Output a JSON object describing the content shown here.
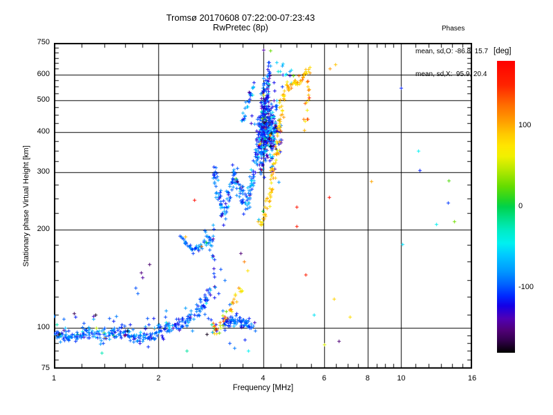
{
  "title": {
    "line1": "Tromsø 20170608 07:22:00-07:23:43",
    "line2": "RwPretec (8p)"
  },
  "stats": {
    "header": "Phases",
    "line_o": "mean, sd,O: -86.8, 15.7",
    "line_x": "mean, sd,X:  95.9, 20.4"
  },
  "axes": {
    "x": {
      "label": "Frequency [MHz]",
      "scale": "log",
      "min": 1,
      "max": 16,
      "major": [
        1,
        2,
        4,
        6,
        8,
        10,
        16
      ],
      "minor": [
        1.2,
        1.4,
        1.6,
        1.8,
        2.5,
        3,
        3.5,
        4.5,
        5,
        5.5,
        6.5,
        7,
        7.5,
        8.5,
        9,
        9.5,
        11,
        12,
        13,
        14,
        15
      ],
      "grid": [
        2,
        4,
        6,
        8,
        10
      ]
    },
    "y": {
      "label": "Stationary phase Virtual Height [km]",
      "scale": "log",
      "min": 75,
      "max": 750,
      "major": [
        75,
        100,
        200,
        300,
        400,
        500,
        600,
        750
      ],
      "minor": [
        80,
        85,
        90,
        95,
        110,
        125,
        140,
        160,
        180,
        225,
        250,
        275,
        325,
        350,
        375,
        425,
        450,
        475,
        525,
        550,
        575,
        625,
        650,
        675,
        700,
        725
      ],
      "grid": [
        100,
        200,
        300,
        400,
        500,
        600
      ]
    }
  },
  "colorbar": {
    "label": "[deg]",
    "min": -180,
    "max": 180,
    "ticks": [
      100,
      0,
      -100
    ],
    "stops": [
      [
        180,
        "#ff0000"
      ],
      [
        150,
        "#ff2400"
      ],
      [
        125,
        "#ff6e00"
      ],
      [
        105,
        "#ff9f00"
      ],
      [
        90,
        "#ffc800"
      ],
      [
        75,
        "#ffe600"
      ],
      [
        62,
        "#f0f000"
      ],
      [
        45,
        "#b4e800"
      ],
      [
        25,
        "#64dc00"
      ],
      [
        8,
        "#1ed428"
      ],
      [
        0,
        "#00d24b"
      ],
      [
        -15,
        "#00e08c"
      ],
      [
        -30,
        "#00ecc8"
      ],
      [
        -45,
        "#00f0f0"
      ],
      [
        -60,
        "#00c8ff"
      ],
      [
        -80,
        "#0096ff"
      ],
      [
        -95,
        "#0064ff"
      ],
      [
        -110,
        "#0028ff"
      ],
      [
        -122,
        "#1400e6"
      ],
      [
        -138,
        "#5000b4"
      ],
      [
        -152,
        "#500078"
      ],
      [
        -165,
        "#32004b"
      ],
      [
        -180,
        "#000000"
      ]
    ]
  },
  "chart_data": {
    "type": "scatter",
    "title": "Tromsø 20170608 07:22:00-07:23:43 RwPretec (8p)",
    "xlabel": "Frequency [MHz]",
    "ylabel": "Stationary phase Virtual Height [km]",
    "xlim": [
      1,
      16
    ],
    "ylim": [
      75,
      750
    ],
    "xscale": "log",
    "yscale": "log",
    "color_variable": "phase [deg]",
    "legend": "colorbar right, phase -180..180 deg",
    "marker": "plus",
    "seed": 7,
    "traces": [
      {
        "name": "e-region-trace",
        "anchors": [
          [
            1.0,
            96
          ],
          [
            1.12,
            94
          ],
          [
            1.25,
            97
          ],
          [
            1.4,
            95
          ],
          [
            1.55,
            98
          ],
          [
            1.7,
            95
          ],
          [
            1.85,
            93
          ],
          [
            2.0,
            97
          ],
          [
            2.12,
            100
          ],
          [
            2.25,
            103
          ],
          [
            2.4,
            106
          ],
          [
            2.55,
            112
          ],
          [
            2.7,
            120
          ],
          [
            2.82,
            130
          ]
        ],
        "n": 300,
        "phase": -95,
        "phase_sd": 16,
        "jf": 0.004,
        "jv": 0.01,
        "rand": 0.03
      },
      {
        "name": "e-region-scatter",
        "anchors": [
          [
            1.0,
            104
          ],
          [
            2.2,
            106
          ],
          [
            3.4,
            107
          ]
        ],
        "n": 42,
        "phase": -90,
        "phase_sd": 30,
        "jf": 0.01,
        "jv": 0.022,
        "rand": 0.07
      },
      {
        "name": "e2-knot",
        "anchors": [
          [
            3.08,
            104
          ],
          [
            3.3,
            105
          ],
          [
            3.5,
            103
          ],
          [
            3.72,
            102
          ]
        ],
        "n": 70,
        "phase": -100,
        "phase_sd": 14,
        "jf": 0.004,
        "jv": 0.008,
        "rand": 0.02
      },
      {
        "name": "u-arc",
        "anchors": [
          [
            2.33,
            193
          ],
          [
            2.42,
            180
          ],
          [
            2.52,
            174
          ],
          [
            2.63,
            178
          ],
          [
            2.73,
            189
          ]
        ],
        "n": 40,
        "phase": -88,
        "phase_sd": 16,
        "jf": 0.003,
        "jv": 0.007,
        "rand": 0.04
      },
      {
        "name": "knot-2p8",
        "type": "blob",
        "cx": 2.78,
        "cy": 186,
        "sx": 0.007,
        "sy": 0.014,
        "n": 16,
        "phase": -92,
        "phase_sd": 16,
        "rand": 0.05
      },
      {
        "name": "vertical-strand",
        "anchors": [
          [
            2.86,
            205
          ],
          [
            2.88,
            160
          ],
          [
            2.9,
            125
          ]
        ],
        "n": 15,
        "phase": -105,
        "phase_sd": 28,
        "jf": 0.002,
        "jv": 0.01,
        "rand": 0.12
      },
      {
        "name": "f1-cusp",
        "anchors": [
          [
            2.88,
            312
          ],
          [
            2.98,
            258
          ],
          [
            3.08,
            221
          ],
          [
            3.2,
            258
          ],
          [
            3.3,
            308
          ]
        ],
        "n": 80,
        "phase": -95,
        "phase_sd": 17,
        "jf": 0.004,
        "jv": 0.012,
        "rand": 0.02
      },
      {
        "name": "f2-cusp-rise",
        "anchors": [
          [
            3.32,
            300
          ],
          [
            3.46,
            255
          ],
          [
            3.56,
            237
          ],
          [
            3.68,
            267
          ],
          [
            3.79,
            315
          ],
          [
            3.88,
            368
          ],
          [
            3.94,
            430
          ]
        ],
        "n": 120,
        "phase": -95,
        "phase_sd": 19,
        "jf": 0.004,
        "jv": 0.013,
        "rand": 0.03
      },
      {
        "name": "f-main-strand",
        "anchors": [
          [
            3.96,
            300
          ],
          [
            3.97,
            380
          ],
          [
            3.99,
            460
          ],
          [
            4.01,
            540
          ],
          [
            4.03,
            570
          ]
        ],
        "n": 85,
        "phase": -105,
        "phase_sd": 24,
        "jf": 0.003,
        "jv": 0.009,
        "rand": 0.03
      },
      {
        "name": "f-blob",
        "type": "blob",
        "cx": 4.13,
        "cy": 405,
        "sx": 0.016,
        "sy": 0.05,
        "n": 330,
        "phase": -100,
        "phase_sd": 33,
        "rand": 0.05
      },
      {
        "name": "f-top-strand",
        "anchors": [
          [
            4.08,
            480
          ],
          [
            4.11,
            545
          ],
          [
            4.13,
            595
          ],
          [
            4.17,
            638
          ]
        ],
        "n": 42,
        "phase": -100,
        "phase_sd": 28,
        "jf": 0.003,
        "jv": 0.008,
        "rand": 0.05
      },
      {
        "name": "left-diagonal",
        "anchors": [
          [
            3.46,
            428
          ],
          [
            3.56,
            468
          ],
          [
            3.66,
            512
          ],
          [
            3.76,
            552
          ]
        ],
        "n": 26,
        "phase": -90,
        "phase_sd": 24,
        "jf": 0.003,
        "jv": 0.008,
        "rand": 0.04
      },
      {
        "name": "top-scatter",
        "anchors": [
          [
            4.4,
            655
          ],
          [
            4.55,
            620
          ],
          [
            4.72,
            598
          ],
          [
            4.88,
            585
          ]
        ],
        "n": 13,
        "phase": -80,
        "phase_sd": 40,
        "jf": 0.004,
        "jv": 0.01,
        "rand": 0.1
      },
      {
        "name": "x-mode-trace",
        "anchors": [
          [
            3.88,
            213
          ],
          [
            3.96,
            214
          ],
          [
            4.06,
            226
          ],
          [
            4.16,
            252
          ],
          [
            4.26,
            292
          ],
          [
            4.34,
            338
          ],
          [
            4.41,
            388
          ],
          [
            4.48,
            442
          ],
          [
            4.55,
            492
          ],
          [
            4.63,
            527
          ],
          [
            4.77,
            552
          ],
          [
            4.97,
            572
          ],
          [
            5.22,
            592
          ],
          [
            5.46,
            612
          ]
        ],
        "n": 125,
        "phase": 92,
        "phase_sd": 15,
        "jf": 0.004,
        "jv": 0.009,
        "rand": 0.04
      },
      {
        "name": "x-upper-strand",
        "anchors": [
          [
            5.28,
            420
          ],
          [
            5.34,
            465
          ],
          [
            5.39,
            505
          ],
          [
            5.43,
            548
          ],
          [
            5.36,
            582
          ]
        ],
        "n": 16,
        "phase": 95,
        "phase_sd": 24,
        "jf": 0.003,
        "jv": 0.009,
        "rand": 0.06
      },
      {
        "name": "es-arc",
        "anchors": [
          [
            2.96,
            100
          ],
          [
            3.07,
            105
          ],
          [
            3.17,
            111
          ],
          [
            3.27,
            118
          ],
          [
            3.37,
            125
          ],
          [
            3.46,
            131
          ]
        ],
        "n": 30,
        "phase": 85,
        "phase_sd": 32,
        "jf": 0.003,
        "jv": 0.01,
        "rand": 0.08
      },
      {
        "name": "multicolor-knot",
        "type": "blob",
        "cx": 2.88,
        "cy": 100,
        "sx": 0.006,
        "sy": 0.012,
        "n": 14,
        "phase": 0,
        "phase_sd": 0,
        "rand": 1.0
      }
    ],
    "points": [
      [
        1.37,
        84,
        -25
      ],
      [
        2.41,
        85,
        -20
      ],
      [
        1.78,
        148,
        -150
      ],
      [
        1.8,
        143,
        -142
      ],
      [
        1.72,
        133,
        -100
      ],
      [
        1.74,
        128,
        -96
      ],
      [
        1.88,
        157,
        -155
      ],
      [
        3.45,
        170,
        -152
      ],
      [
        3.52,
        160,
        118
      ],
      [
        3.6,
        150,
        78
      ],
      [
        3.02,
        152,
        -100
      ],
      [
        3.1,
        140,
        -92
      ],
      [
        2.98,
        128,
        -106
      ],
      [
        3.2,
        118,
        -96
      ],
      [
        3.2,
        90,
        -100
      ],
      [
        3.3,
        87,
        -88
      ],
      [
        3.55,
        92,
        -112
      ],
      [
        3.62,
        85,
        -45
      ],
      [
        2.54,
        247,
        170
      ],
      [
        5.0,
        236,
        162
      ],
      [
        5.0,
        205,
        160
      ],
      [
        5.3,
        146,
        156
      ],
      [
        6.2,
        252,
        168
      ],
      [
        6.4,
        123,
        85
      ],
      [
        5.6,
        110,
        -50
      ],
      [
        7.1,
        108,
        80
      ],
      [
        6.0,
        89,
        55
      ],
      [
        6.6,
        91,
        -152
      ],
      [
        8.2,
        282,
        102
      ],
      [
        10.0,
        545,
        -112
      ],
      [
        11.2,
        350,
        -45
      ],
      [
        11.3,
        305,
        -112
      ],
      [
        13.7,
        283,
        20
      ],
      [
        13.6,
        243,
        -106
      ],
      [
        12.6,
        208,
        -45
      ],
      [
        10.05,
        181,
        -52
      ],
      [
        14.2,
        212,
        28
      ],
      [
        6.22,
        627,
        108
      ],
      [
        6.45,
        645,
        92
      ],
      [
        4.0,
        715,
        -140
      ],
      [
        4.2,
        712,
        25
      ]
    ]
  }
}
